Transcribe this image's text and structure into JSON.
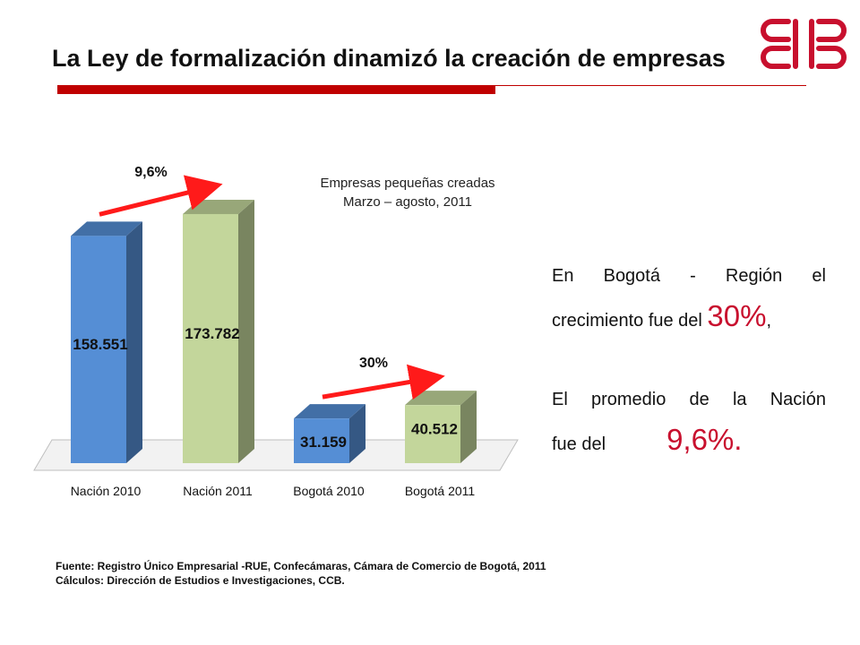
{
  "slide": {
    "title": "La Ley de formalización dinamizó la creación de empresas",
    "colors": {
      "accent": "#c8102e",
      "title_rule": "#c00000"
    },
    "logo_icon": "ccb-logo-icon"
  },
  "chart_data": {
    "type": "bar",
    "title": "Empresas pequeñas creadas",
    "subtitle": "Marzo – agosto, 2011",
    "categories": [
      "Nación 2010",
      "Nación 2011",
      "Bogotá 2010",
      "Bogotá 2011"
    ],
    "values": [
      158551,
      173782,
      31159,
      40512
    ],
    "value_labels": [
      "158.551",
      "173.782",
      "31.159",
      "40.512"
    ],
    "bar_colors": [
      "#558ed5",
      "#c3d69b",
      "#558ed5",
      "#c3d69b"
    ],
    "annotations": [
      {
        "text": "9,6%",
        "from": "Nación 2010",
        "to": "Nación 2011"
      },
      {
        "text": "30%",
        "from": "Bogotá 2010",
        "to": "Bogotá 2011"
      }
    ],
    "ylim": [
      0,
      180000
    ],
    "grid": false,
    "xlabel": "",
    "ylabel": ""
  },
  "text": {
    "para1_line1": "En Bogotá - Región el",
    "para1_line2_prefix": "crecimiento fue del ",
    "para1_highlight": "30%",
    "para1_suffix": ",",
    "para2_line1": "El promedio de la Nación",
    "para2_line2_prefix": "fue del",
    "para2_highlight": "9,6%."
  },
  "source": {
    "line1": "Fuente: Registro Único Empresarial -RUE, Confecámaras, Cámara de Comercio de Bogotá, 2011",
    "line2": "Cálculos: Dirección de Estudios e Investigaciones, CCB."
  }
}
